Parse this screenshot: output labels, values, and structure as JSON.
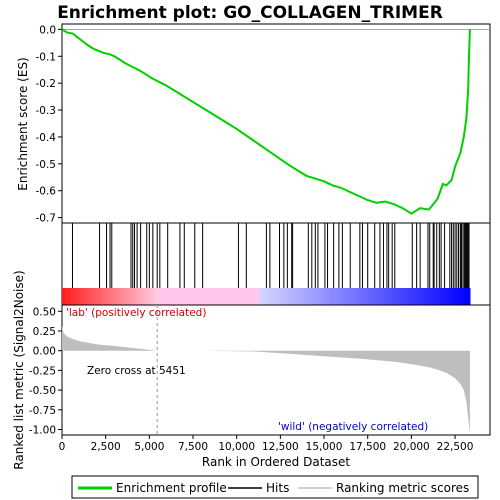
{
  "chart_data": {
    "type": "line",
    "title": "Enrichment plot: GO_COLLAGEN_TRIMER",
    "xlabel": "Rank in Ordered Dataset",
    "ylabel_top": "Enrichment score (ES)",
    "ylabel_bottom": "Ranked list metric (Signal2Noise)",
    "x_range": [
      0,
      24500
    ],
    "x_ticks": [
      "0",
      "2,500",
      "5,000",
      "7,500",
      "10,000",
      "12,500",
      "15,000",
      "17,500",
      "20,000",
      "22,500"
    ],
    "x_tick_values": [
      0,
      2500,
      5000,
      7500,
      10000,
      12500,
      15000,
      17500,
      20000,
      22500
    ],
    "es_ylim": [
      -0.72,
      0.02
    ],
    "es_ticks": [
      "0.0",
      "-0.1",
      "-0.2",
      "-0.3",
      "-0.4",
      "-0.5",
      "-0.6",
      "-0.7"
    ],
    "es_tick_values": [
      0,
      -0.1,
      -0.2,
      -0.3,
      -0.4,
      -0.5,
      -0.6,
      -0.7
    ],
    "metric_ylim": [
      -1.07,
      0.58
    ],
    "metric_ticks": [
      "0.50",
      "0.25",
      "0.00",
      "-0.25",
      "-0.50",
      "-0.75",
      "-1.00"
    ],
    "metric_tick_values": [
      0.5,
      0.25,
      0,
      -0.25,
      -0.5,
      -0.75,
      -1.0
    ],
    "n_genes": 23350,
    "zero_cross_rank": 5451,
    "zero_cross_label": "Zero cross at 5451",
    "pos_label": "'lab' (positively correlated)",
    "neg_label": "'wild' (negatively correlated)",
    "colors": {
      "es_line": "#00d000",
      "pos_label": "#cc0000",
      "neg_label": "#0000cc",
      "metric_fill": "#bebebe"
    },
    "enrichment_profile": {
      "x": [
        0,
        300,
        600,
        900,
        1200,
        1500,
        1800,
        2100,
        2400,
        2700,
        3000,
        3300,
        3600,
        3900,
        4200,
        4500,
        4800,
        5100,
        5400,
        5700,
        6000,
        7000,
        8000,
        9000,
        10000,
        11000,
        12000,
        13000,
        14000,
        14500,
        15000,
        15500,
        16000,
        16500,
        17000,
        17500,
        18000,
        18500,
        19000,
        19500,
        20000,
        20500,
        21000,
        21500,
        21800,
        22000,
        22300,
        22500,
        22800,
        23000,
        23150,
        23250,
        23300,
        23350
      ],
      "y": [
        0,
        -0.012,
        -0.015,
        -0.03,
        -0.045,
        -0.06,
        -0.072,
        -0.08,
        -0.088,
        -0.092,
        -0.1,
        -0.112,
        -0.125,
        -0.135,
        -0.145,
        -0.155,
        -0.167,
        -0.18,
        -0.19,
        -0.2,
        -0.21,
        -0.25,
        -0.29,
        -0.33,
        -0.37,
        -0.415,
        -0.46,
        -0.505,
        -0.545,
        -0.555,
        -0.565,
        -0.58,
        -0.59,
        -0.605,
        -0.62,
        -0.635,
        -0.645,
        -0.64,
        -0.65,
        -0.665,
        -0.685,
        -0.665,
        -0.67,
        -0.63,
        -0.575,
        -0.58,
        -0.56,
        -0.51,
        -0.46,
        -0.4,
        -0.33,
        -0.22,
        -0.1,
        0.0
      ]
    },
    "hits": [
      600,
      2150,
      2550,
      2750,
      2850,
      3950,
      4050,
      4150,
      4300,
      4500,
      4850,
      5000,
      5200,
      5450,
      5600,
      6050,
      6750,
      7000,
      7600,
      8050,
      10100,
      10550,
      11700,
      11900,
      12450,
      12700,
      12900,
      13150,
      13200,
      14100,
      14300,
      14500,
      14650,
      15050,
      15200,
      15550,
      15850,
      16050,
      16500,
      17050,
      17200,
      17500,
      17900,
      18200,
      18400,
      18600,
      18700,
      18900,
      19050,
      20050,
      20300,
      20500,
      20950,
      21050,
      21250,
      21300,
      21450,
      21600,
      21700,
      21900,
      22200,
      22300,
      22400,
      22500,
      22600,
      22700,
      22800,
      22850,
      22900,
      23000,
      23050,
      23100,
      23150,
      23200,
      23250,
      23300
    ],
    "metric": {
      "x": [
        0,
        100,
        300,
        600,
        1000,
        1500,
        2000,
        3000,
        4000,
        5000,
        5451,
        8000,
        11000,
        13000,
        15000,
        17000,
        19000,
        20000,
        21000,
        21500,
        22000,
        22500,
        22800,
        23000,
        23150,
        23250,
        23350
      ],
      "y": [
        0.32,
        0.22,
        0.18,
        0.15,
        0.12,
        0.1,
        0.08,
        0.06,
        0.035,
        0.01,
        0.0,
        0.0,
        -0.01,
        -0.04,
        -0.07,
        -0.1,
        -0.14,
        -0.17,
        -0.21,
        -0.24,
        -0.28,
        -0.35,
        -0.42,
        -0.5,
        -0.65,
        -0.85,
        -1.05
      ]
    }
  },
  "legend": {
    "items": [
      {
        "label": "Enrichment profile",
        "color": "#00d000"
      },
      {
        "label": "Hits",
        "color": "#000000"
      },
      {
        "label": "Ranking metric scores",
        "color": "#bebebe"
      }
    ]
  }
}
